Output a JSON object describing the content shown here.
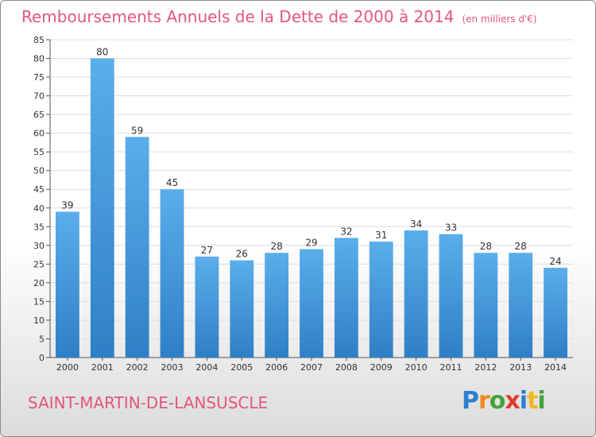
{
  "title": "Remboursements Annuels de la Dette de 2000 à 2014",
  "title_unit": "(en milliers d'€)",
  "commune": "SAINT-MARTIN-DE-LANSUSCLE",
  "logo": {
    "text": "Proxiti",
    "letters": [
      {
        "ch": "P",
        "color": "#2e7fd1"
      },
      {
        "ch": "r",
        "color": "#f08a1c"
      },
      {
        "ch": "o",
        "color": "#43a33b"
      },
      {
        "ch": "x",
        "color": "#e23b2e"
      },
      {
        "ch": "i",
        "color": "#2e7fd1"
      },
      {
        "ch": "t",
        "color": "#f0b81c"
      },
      {
        "ch": "i",
        "color": "#43a33b"
      }
    ]
  },
  "colors": {
    "bar_top": "#5aaeea",
    "bar_bottom": "#2f7fc6",
    "accent": "#e4567c",
    "grid": "#dddddd"
  },
  "chart_data": {
    "type": "bar",
    "title": "Remboursements Annuels de la Dette de 2000 à 2014",
    "xlabel": "",
    "ylabel": "",
    "categories": [
      "2000",
      "2001",
      "2002",
      "2003",
      "2004",
      "2005",
      "2006",
      "2007",
      "2008",
      "2009",
      "2010",
      "2011",
      "2012",
      "2013",
      "2014"
    ],
    "values": [
      39,
      80,
      59,
      45,
      27,
      26,
      28,
      29,
      32,
      31,
      34,
      33,
      28,
      28,
      24
    ],
    "ylim": [
      0,
      85
    ],
    "yticks": [
      0,
      5,
      10,
      15,
      20,
      25,
      30,
      35,
      40,
      45,
      50,
      55,
      60,
      65,
      70,
      75,
      80,
      85
    ],
    "grid": true,
    "legend": "none"
  }
}
